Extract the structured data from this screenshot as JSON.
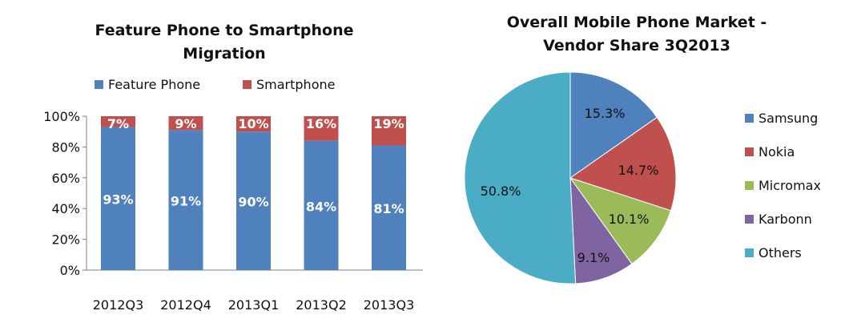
{
  "chart_data": [
    {
      "type": "bar",
      "stacked": true,
      "title": "Feature Phone to Smartphone Migration",
      "title_lines": [
        "Feature Phone to Smartphone",
        "Migration"
      ],
      "categories": [
        "2012Q3",
        "2012Q4",
        "2013Q1",
        "2013Q2",
        "2013Q3"
      ],
      "series": [
        {
          "name": "Feature Phone",
          "values": [
            93,
            91,
            90,
            84,
            81
          ],
          "labels": [
            "93%",
            "91%",
            "90%",
            "84%",
            "81%"
          ],
          "color": "#4F81BD"
        },
        {
          "name": "Smartphone",
          "values": [
            7,
            9,
            10,
            16,
            19
          ],
          "labels": [
            "7%",
            "9%",
            "10%",
            "16%",
            "19%"
          ],
          "color": "#C0504D"
        }
      ],
      "ylim": [
        0,
        100
      ],
      "yticks": [
        "0%",
        "20%",
        "40%",
        "60%",
        "80%",
        "100%"
      ],
      "legend_position": "top",
      "grid": false
    },
    {
      "type": "pie",
      "title": "Overall Mobile Phone Market - Vendor Share 3Q2013",
      "title_lines": [
        "Overall Mobile Phone Market -",
        "Vendor Share 3Q2013"
      ],
      "slices": [
        {
          "name": "Samsung",
          "value": 15.3,
          "label": "15.3%",
          "color": "#4F81BD"
        },
        {
          "name": "Nokia",
          "value": 14.7,
          "label": "14.7%",
          "color": "#C0504D"
        },
        {
          "name": "Micromax",
          "value": 10.1,
          "label": "10.1%",
          "color": "#9BBB59"
        },
        {
          "name": "Karbonn",
          "value": 9.1,
          "label": "9.1%",
          "color": "#8064A2"
        },
        {
          "name": "Others",
          "value": 50.8,
          "label": "50.8%",
          "color": "#4BACC6"
        }
      ],
      "legend_position": "right"
    }
  ]
}
